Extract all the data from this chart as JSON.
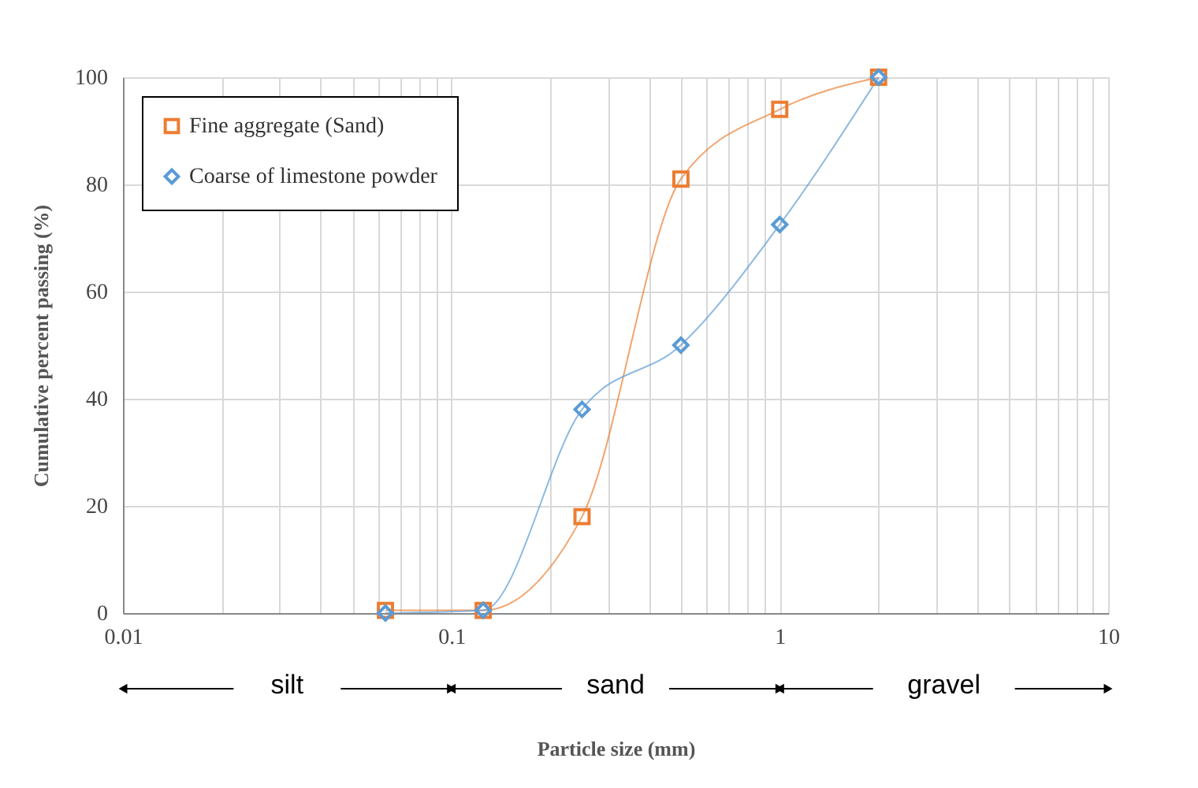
{
  "chart_data": {
    "type": "line",
    "xlabel": "Particle size (mm)",
    "ylabel": "Cumulative percent passing (%)",
    "log": "x",
    "xlim": [
      0.01,
      10
    ],
    "ylim": [
      0,
      100
    ],
    "xticks": [
      0.01,
      {
        "value": 0.02,
        "label": null
      },
      {
        "value": 0.03,
        "label": null
      },
      {
        "value": 0.04,
        "label": null
      },
      {
        "value": 0.05,
        "label": null
      },
      {
        "value": 0.06,
        "label": null
      },
      {
        "value": 0.07,
        "label": null
      },
      {
        "value": 0.08,
        "label": null
      },
      {
        "value": 0.09,
        "label": null
      },
      0.1,
      {
        "value": 0.2,
        "label": null
      },
      {
        "value": 0.3,
        "label": null
      },
      {
        "value": 0.4,
        "label": null
      },
      {
        "value": 0.5,
        "label": null
      },
      {
        "value": 0.6,
        "label": null
      },
      {
        "value": 0.7,
        "label": null
      },
      {
        "value": 0.8,
        "label": null
      },
      {
        "value": 0.9,
        "label": null
      },
      1,
      {
        "value": 2,
        "label": null
      },
      {
        "value": 3,
        "label": null
      },
      {
        "value": 4,
        "label": null
      },
      {
        "value": 5,
        "label": null
      },
      {
        "value": 6,
        "label": null
      },
      {
        "value": 7,
        "label": null
      },
      {
        "value": 8,
        "label": null
      },
      {
        "value": 9,
        "label": null
      },
      10
    ],
    "yticks": [
      0,
      20,
      40,
      60,
      80,
      100
    ],
    "grid": true,
    "legend": "top left",
    "series": [
      {
        "name": "Fine aggregate (Sand)",
        "color": "#ed7d31",
        "marker": "square",
        "line_style": "solid",
        "x": [
          0.063,
          0.125,
          0.25,
          0.5,
          1,
          2
        ],
        "values": [
          0.5,
          0.5,
          18,
          81,
          94,
          100
        ]
      },
      {
        "name": "Coarse of limestone powder",
        "color": "#5b9bd5",
        "marker": "diamond",
        "line_style": "solid",
        "x": [
          0.063,
          0.125,
          0.25,
          0.5,
          1,
          2
        ],
        "values": [
          0,
          0.5,
          38,
          50,
          72.5,
          100
        ]
      }
    ],
    "annotations": [
      "silt",
      "sand",
      "gravel"
    ]
  }
}
